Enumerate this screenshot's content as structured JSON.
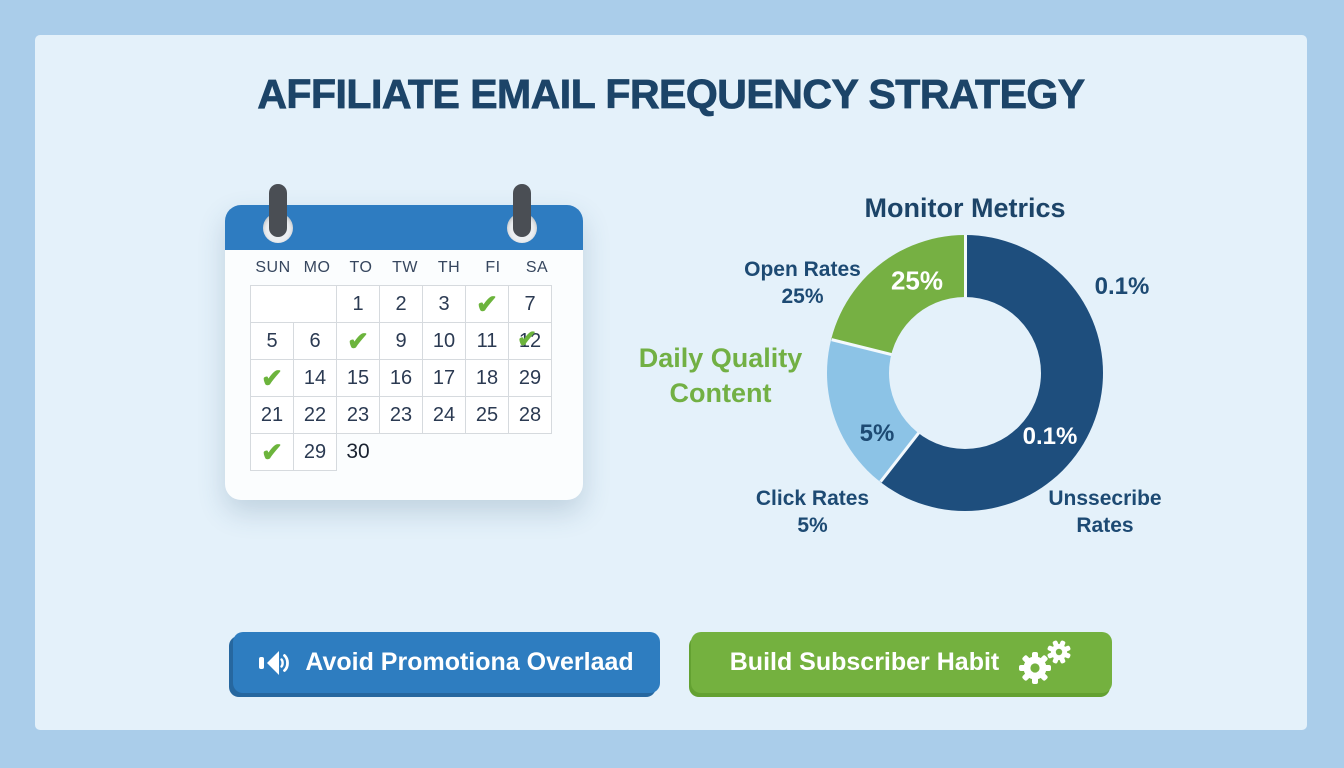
{
  "title": "AFFILIATE EMAIL FREQUENCY STRATEGY",
  "calendar": {
    "check_glyph": "✔",
    "day_headers": [
      "SUN",
      "MO",
      "TO",
      "TW",
      "TH",
      "FI",
      "SA"
    ],
    "rows": [
      [
        {
          "type": "empty",
          "span": 2
        },
        {
          "type": "num",
          "value": "1"
        },
        {
          "type": "num",
          "value": "2"
        },
        {
          "type": "num",
          "value": "3"
        },
        {
          "type": "check"
        },
        {
          "type": "num",
          "value": "7"
        }
      ],
      [
        {
          "type": "num",
          "value": "5"
        },
        {
          "type": "num",
          "value": "6"
        },
        {
          "type": "check"
        },
        {
          "type": "num",
          "value": "9"
        },
        {
          "type": "num",
          "value": "10"
        },
        {
          "type": "num",
          "value": "11"
        },
        {
          "type": "num_check",
          "value": "12"
        }
      ],
      [
        {
          "type": "check"
        },
        {
          "type": "num",
          "value": "14"
        },
        {
          "type": "num",
          "value": "15"
        },
        {
          "type": "num",
          "value": "16"
        },
        {
          "type": "num",
          "value": "17"
        },
        {
          "type": "num",
          "value": "18"
        },
        {
          "type": "num",
          "value": "29"
        }
      ],
      [
        {
          "type": "num",
          "value": "21"
        },
        {
          "type": "num",
          "value": "22"
        },
        {
          "type": "num",
          "value": "23"
        },
        {
          "type": "num",
          "value": "23"
        },
        {
          "type": "num",
          "value": "24"
        },
        {
          "type": "num",
          "value": "25"
        },
        {
          "type": "num",
          "value": "28"
        }
      ],
      [
        {
          "type": "check"
        },
        {
          "type": "num",
          "value": "29"
        },
        {
          "type": "free",
          "value": "30"
        }
      ]
    ]
  },
  "daily_quality_label": {
    "line1": "Daily Quality",
    "line2": "Content"
  },
  "chart_data": {
    "type": "pie",
    "donut": true,
    "title": "Monitor Metrics",
    "legend_position": "around",
    "segments": [
      {
        "name": "Unssecribe Rates",
        "value_label": "0.1%",
        "sweep_deg": 218,
        "color": "#1e4e7d"
      },
      {
        "name": "Click Rates",
        "value_label": "5%",
        "sweep_deg": 66,
        "color": "#8cc3e6"
      },
      {
        "name": "Open Rates",
        "value_label": "25%",
        "sweep_deg": 76,
        "color": "#76b043"
      }
    ],
    "callouts": {
      "open_rates": {
        "line1": "Open Rates",
        "line2": "25%"
      },
      "click_rates": {
        "line1": "Click Rates",
        "line2": "5%"
      },
      "unsubscribe": {
        "line1": "Unssecribe",
        "line2": "Rates"
      },
      "outer_value_top_right": "0.1%"
    }
  },
  "buttons": {
    "avoid_overload": {
      "label": "Avoid Promotiona Overlaad",
      "color": "#2e7dc0"
    },
    "build_habit": {
      "label": "Build Subscriber Habit",
      "color": "#74b13f"
    }
  },
  "colors": {
    "frame": "#aacdea",
    "panel": "#e4f1fa",
    "heading": "#1c4468",
    "calendar_header_blue": "#2e7cc1",
    "check_green": "#6cb43c",
    "accent_green": "#72b044"
  }
}
